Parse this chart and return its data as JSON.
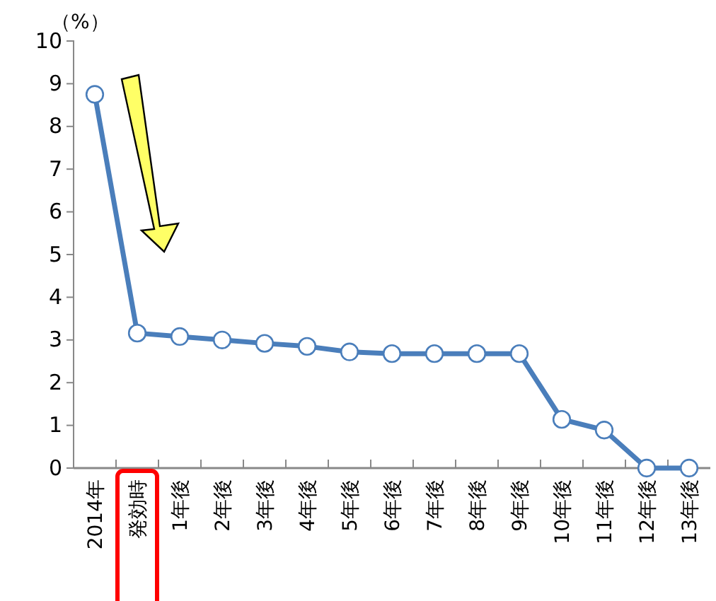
{
  "chart_data": {
    "type": "line",
    "ylabel": "（%）",
    "categories": [
      "2014年",
      "発効時",
      "1年後",
      "2年後",
      "3年後",
      "4年後",
      "5年後",
      "6年後",
      "7年後",
      "8年後",
      "9年後",
      "10年後",
      "11年後",
      "12年後",
      "13年後"
    ],
    "series": [
      {
        "color": "#4a7ebb",
        "values": [
          8.75,
          3.16,
          3.08,
          3.0,
          2.92,
          2.85,
          2.72,
          2.68,
          2.68,
          2.68,
          2.68,
          1.14,
          0.89,
          0,
          0
        ]
      }
    ],
    "ylim": [
      0,
      10
    ],
    "yticks": [
      0,
      1,
      2,
      3,
      4,
      5,
      6,
      7,
      8,
      9,
      10
    ],
    "marker": "circle",
    "grid": false
  }
}
